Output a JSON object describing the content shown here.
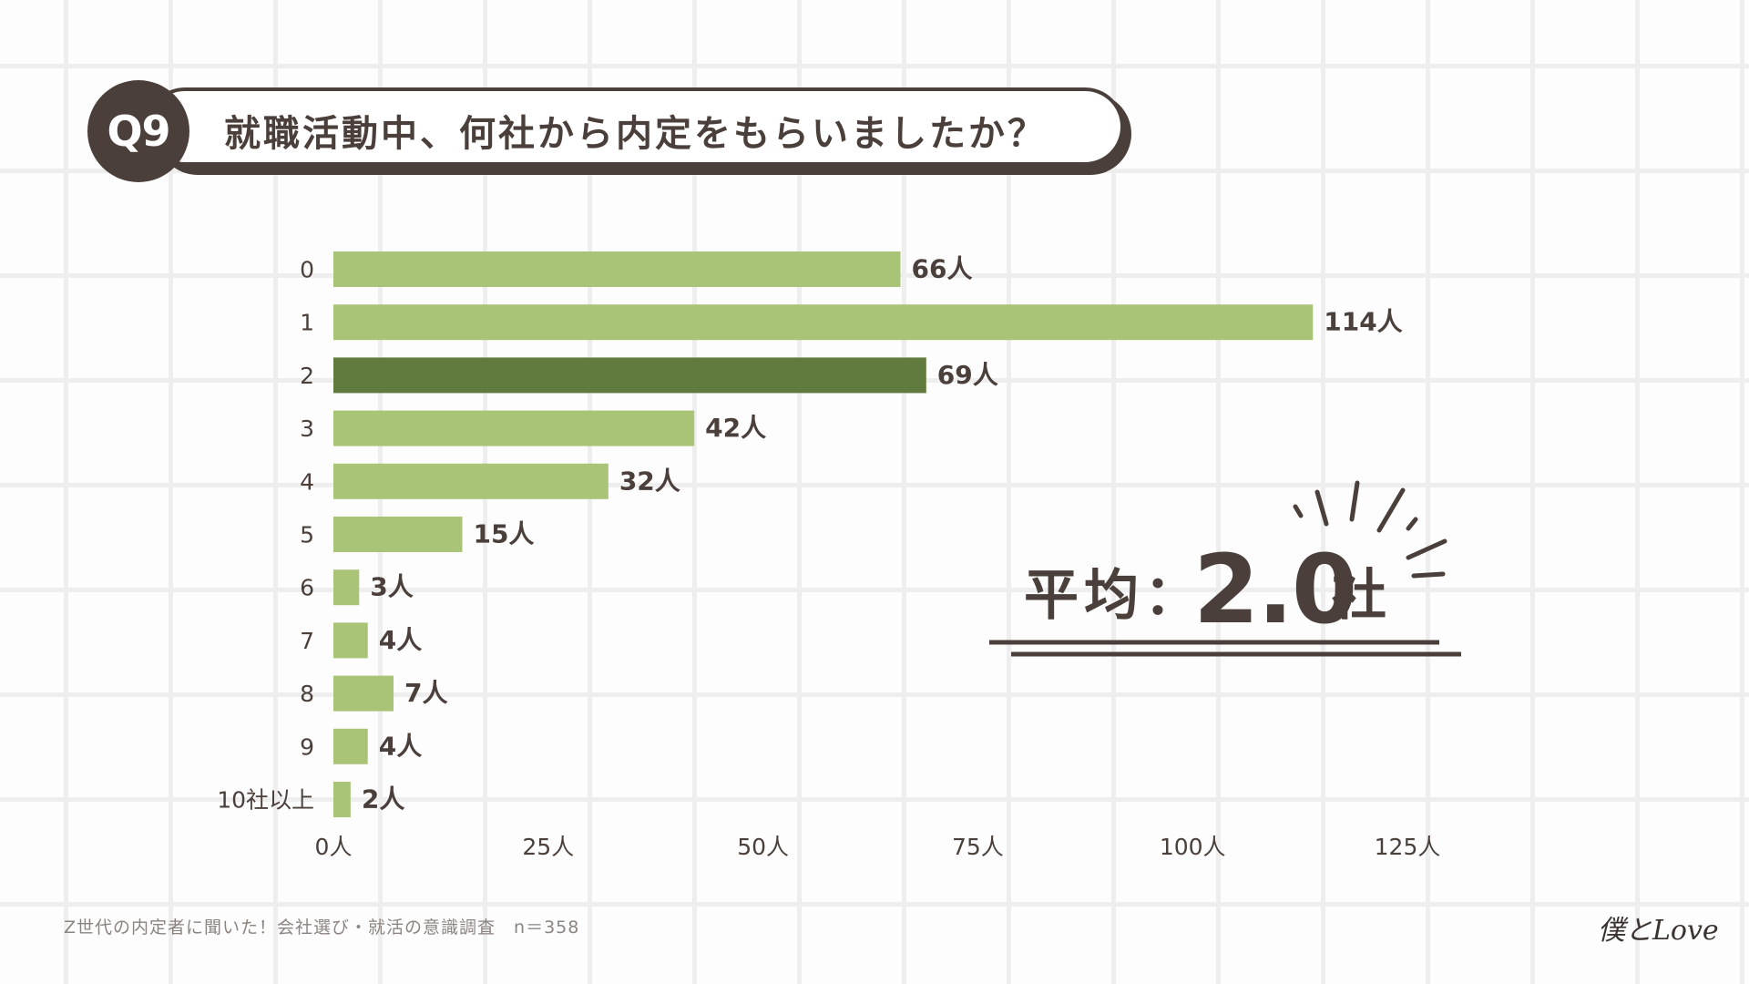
{
  "question": {
    "number": "Q9",
    "title": "就職活動中、何社から内定をもらいましたか？"
  },
  "chart_data": {
    "type": "bar",
    "orientation": "horizontal",
    "categories": [
      "0",
      "1",
      "2",
      "3",
      "4",
      "5",
      "6",
      "7",
      "8",
      "9",
      "10社以上"
    ],
    "values": [
      66,
      114,
      69,
      42,
      32,
      15,
      3,
      4,
      7,
      4,
      2
    ],
    "value_labels": [
      "66人",
      "114人",
      "69人",
      "42人",
      "32人",
      "15人",
      "3人",
      "4人",
      "7人",
      "4人",
      "2人"
    ],
    "highlight_index": 2,
    "x_ticks": [
      "0人",
      "25人",
      "50人",
      "75人",
      "100人",
      "125人"
    ],
    "xlim": [
      0,
      125
    ],
    "colors": {
      "bar": "#a9c477",
      "highlight": "#617a3e",
      "text": "#4a3f3a"
    }
  },
  "average": {
    "label": "平均：",
    "value": "2.0",
    "unit": "社"
  },
  "footer": {
    "source": "Z世代の内定者に聞いた！会社選び・就活の意識調査",
    "n": "n＝358"
  },
  "brand": {
    "logo_text": "僕とLove"
  }
}
